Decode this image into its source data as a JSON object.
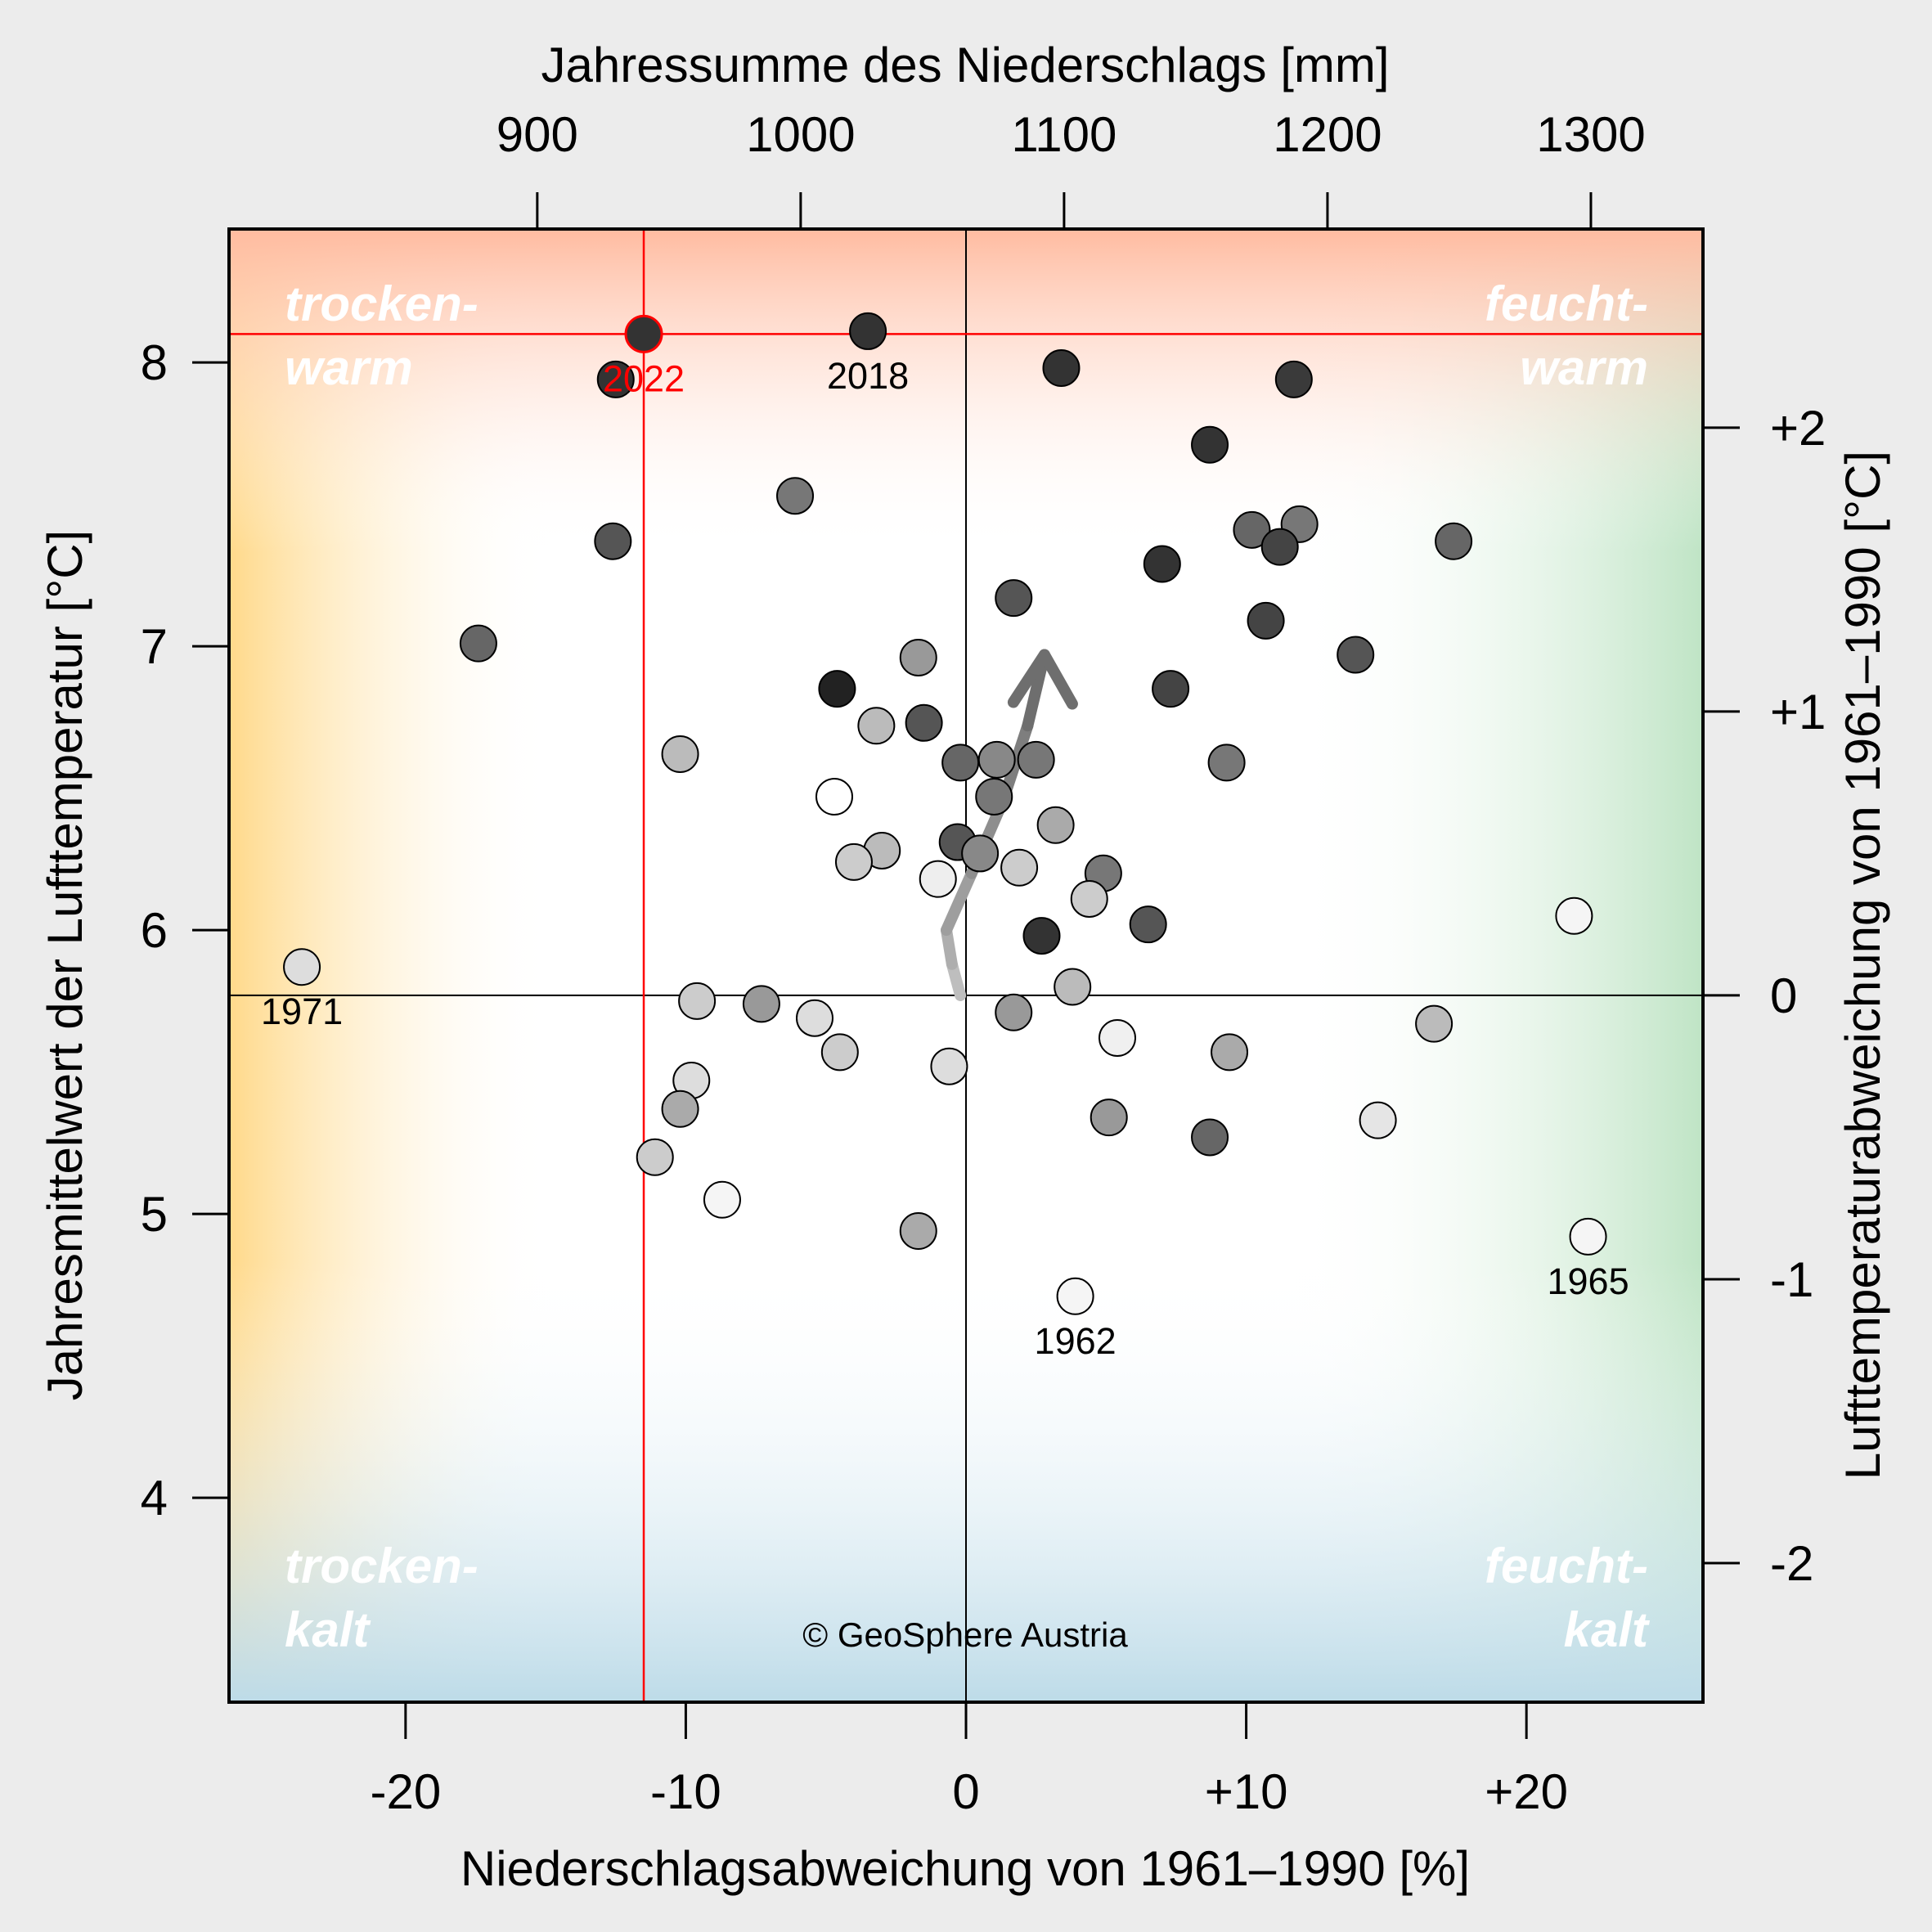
{
  "chart_data": {
    "type": "scatter",
    "title": "",
    "xlabel_top": "Jahressumme des Niederschlags [mm]",
    "xlabel_bottom": "Niederschlagsabweichung von 1961–1990 [%]",
    "ylabel_left": "Jahresmittelwert der Lufttemperatur [°C]",
    "ylabel_right": "Lufttemperaturabweichung von 1961–1990 [°C]",
    "xlim": [
      -26.3,
      26.3
    ],
    "ylim": [
      3.28,
      8.47
    ],
    "ref_precip_mm": 1063,
    "ref_temp_c": 5.77,
    "ticks_bottom": [
      {
        "v": -20,
        "label": "-20"
      },
      {
        "v": -10,
        "label": "-10"
      },
      {
        "v": 0,
        "label": "0"
      },
      {
        "v": 10,
        "label": "+10"
      },
      {
        "v": 20,
        "label": "+20"
      }
    ],
    "ticks_top": [
      {
        "v": -15.3,
        "label": "900"
      },
      {
        "v": -5.9,
        "label": "1000"
      },
      {
        "v": 3.5,
        "label": "1100"
      },
      {
        "v": 12.9,
        "label": "1200"
      },
      {
        "v": 22.3,
        "label": "1300"
      }
    ],
    "ticks_left": [
      {
        "v": 4,
        "label": "4"
      },
      {
        "v": 5,
        "label": "5"
      },
      {
        "v": 6,
        "label": "6"
      },
      {
        "v": 7,
        "label": "7"
      },
      {
        "v": 8,
        "label": "8"
      }
    ],
    "ticks_right": [
      {
        "v": 3.77,
        "label": "-2"
      },
      {
        "v": 4.77,
        "label": "-1"
      },
      {
        "v": 5.77,
        "label": "0"
      },
      {
        "v": 6.77,
        "label": "+1"
      },
      {
        "v": 7.77,
        "label": "+2"
      }
    ],
    "quadrant_labels": {
      "top_left": [
        "trocken-",
        "warm"
      ],
      "top_right": [
        "feucht-",
        "warm"
      ],
      "bottom_left": [
        "trocken-",
        "kalt"
      ],
      "bottom_right": [
        "feucht-",
        "kalt"
      ]
    },
    "highlight": {
      "year": "2022",
      "x": -11.5,
      "y": 8.1,
      "color": "#ff0000"
    },
    "annotations": [
      {
        "label": "2018",
        "x": -3.5,
        "y": 8.11
      },
      {
        "label": "1971",
        "x": -23.7,
        "y": 5.87
      },
      {
        "label": "1962",
        "x": 3.9,
        "y": 4.71
      },
      {
        "label": "1965",
        "x": 22.2,
        "y": 4.92
      }
    ],
    "credit": "© GeoSphere Austria",
    "trend_arrow": [
      [
        -0.2,
        5.77
      ],
      [
        -0.5,
        5.88
      ],
      [
        -0.7,
        6.0
      ],
      [
        0.2,
        6.2
      ],
      [
        1.3,
        6.45
      ],
      [
        2.2,
        6.72
      ],
      [
        2.8,
        6.97
      ]
    ],
    "points": [
      {
        "x": -11.5,
        "y": 8.1,
        "fill": "#333333"
      },
      {
        "x": -12.5,
        "y": 7.94,
        "fill": "#333333"
      },
      {
        "x": -3.5,
        "y": 8.11,
        "fill": "#333333"
      },
      {
        "x": 3.4,
        "y": 7.98,
        "fill": "#333333"
      },
      {
        "x": 11.7,
        "y": 7.94,
        "fill": "#3a3a3a"
      },
      {
        "x": 8.7,
        "y": 7.71,
        "fill": "#333333"
      },
      {
        "x": -6.1,
        "y": 7.53,
        "fill": "#777777"
      },
      {
        "x": -12.6,
        "y": 7.37,
        "fill": "#555555"
      },
      {
        "x": 10.2,
        "y": 7.41,
        "fill": "#666666"
      },
      {
        "x": 11.9,
        "y": 7.43,
        "fill": "#777777"
      },
      {
        "x": 11.2,
        "y": 7.35,
        "fill": "#444444"
      },
      {
        "x": 17.4,
        "y": 7.37,
        "fill": "#666666"
      },
      {
        "x": 7.0,
        "y": 7.29,
        "fill": "#333333"
      },
      {
        "x": 1.7,
        "y": 7.17,
        "fill": "#555555"
      },
      {
        "x": 10.7,
        "y": 7.09,
        "fill": "#444444"
      },
      {
        "x": -17.4,
        "y": 7.01,
        "fill": "#666666"
      },
      {
        "x": -1.7,
        "y": 6.96,
        "fill": "#999999"
      },
      {
        "x": 13.9,
        "y": 6.97,
        "fill": "#555555"
      },
      {
        "x": -4.6,
        "y": 6.85,
        "fill": "#222222"
      },
      {
        "x": 7.3,
        "y": 6.85,
        "fill": "#444444"
      },
      {
        "x": -3.2,
        "y": 6.72,
        "fill": "#bbbbbb"
      },
      {
        "x": -1.5,
        "y": 6.73,
        "fill": "#555555"
      },
      {
        "x": -10.2,
        "y": 6.62,
        "fill": "#bbbbbb"
      },
      {
        "x": -0.2,
        "y": 6.59,
        "fill": "#666666"
      },
      {
        "x": 1.1,
        "y": 6.6,
        "fill": "#888888"
      },
      {
        "x": 2.5,
        "y": 6.6,
        "fill": "#777777"
      },
      {
        "x": 9.3,
        "y": 6.59,
        "fill": "#777777"
      },
      {
        "x": -4.7,
        "y": 6.47,
        "fill": "#ffffff"
      },
      {
        "x": 1.0,
        "y": 6.47,
        "fill": "#777777"
      },
      {
        "x": 3.2,
        "y": 6.37,
        "fill": "#aaaaaa"
      },
      {
        "x": -0.3,
        "y": 6.31,
        "fill": "#555555"
      },
      {
        "x": -3.0,
        "y": 6.28,
        "fill": "#bbbbbb"
      },
      {
        "x": -4.0,
        "y": 6.24,
        "fill": "#cccccc"
      },
      {
        "x": 0.5,
        "y": 6.27,
        "fill": "#888888"
      },
      {
        "x": 1.9,
        "y": 6.22,
        "fill": "#cccccc"
      },
      {
        "x": 4.9,
        "y": 6.2,
        "fill": "#777777"
      },
      {
        "x": -1.0,
        "y": 6.18,
        "fill": "#eeeeee"
      },
      {
        "x": 4.4,
        "y": 6.11,
        "fill": "#cccccc"
      },
      {
        "x": 6.5,
        "y": 6.02,
        "fill": "#555555"
      },
      {
        "x": 2.7,
        "y": 5.98,
        "fill": "#333333"
      },
      {
        "x": 21.7,
        "y": 6.05,
        "fill": "#f5f5f5"
      },
      {
        "x": -23.7,
        "y": 5.87,
        "fill": "#dddddd"
      },
      {
        "x": 3.8,
        "y": 5.8,
        "fill": "#bbbbbb"
      },
      {
        "x": -9.6,
        "y": 5.75,
        "fill": "#cccccc"
      },
      {
        "x": -7.3,
        "y": 5.74,
        "fill": "#999999"
      },
      {
        "x": 1.7,
        "y": 5.71,
        "fill": "#999999"
      },
      {
        "x": -5.4,
        "y": 5.69,
        "fill": "#dddddd"
      },
      {
        "x": 16.7,
        "y": 5.67,
        "fill": "#bbbbbb"
      },
      {
        "x": 5.4,
        "y": 5.62,
        "fill": "#f0f0f0"
      },
      {
        "x": -4.5,
        "y": 5.57,
        "fill": "#cccccc"
      },
      {
        "x": 9.4,
        "y": 5.57,
        "fill": "#aaaaaa"
      },
      {
        "x": -0.6,
        "y": 5.52,
        "fill": "#dddddd"
      },
      {
        "x": -9.8,
        "y": 5.47,
        "fill": "#dddddd"
      },
      {
        "x": -10.2,
        "y": 5.37,
        "fill": "#aaaaaa"
      },
      {
        "x": 5.1,
        "y": 5.34,
        "fill": "#999999"
      },
      {
        "x": 14.7,
        "y": 5.33,
        "fill": "#e5e5e5"
      },
      {
        "x": 8.7,
        "y": 5.27,
        "fill": "#666666"
      },
      {
        "x": -11.1,
        "y": 5.2,
        "fill": "#cccccc"
      },
      {
        "x": -8.7,
        "y": 5.05,
        "fill": "#f5f5f5"
      },
      {
        "x": -1.7,
        "y": 4.94,
        "fill": "#aaaaaa"
      },
      {
        "x": 22.2,
        "y": 4.92,
        "fill": "#f5f5f5"
      },
      {
        "x": 3.9,
        "y": 4.71,
        "fill": "#f5f5f5"
      }
    ]
  }
}
